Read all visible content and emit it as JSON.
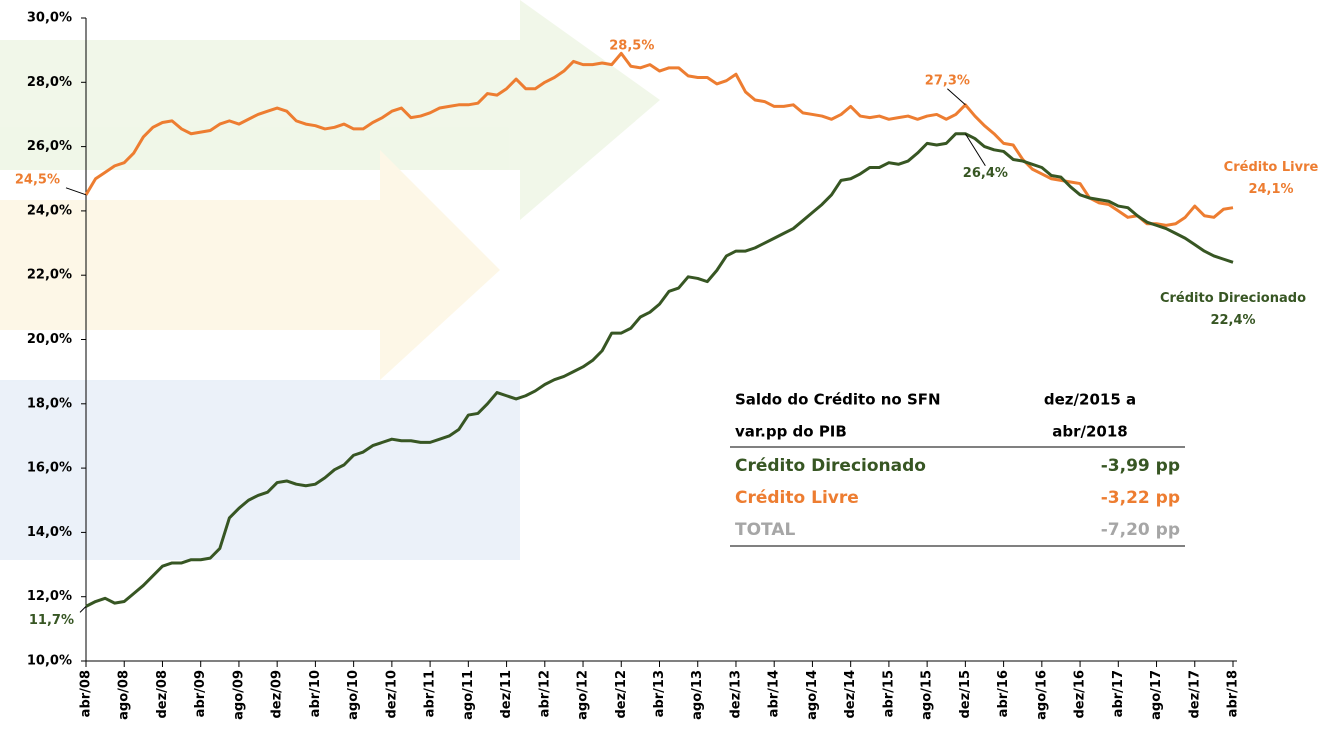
{
  "chart_data": {
    "type": "line",
    "categories": [
      "abr/08",
      null,
      null,
      null,
      "ago/08",
      null,
      null,
      null,
      "dez/08",
      null,
      null,
      null,
      "abr/09",
      null,
      null,
      null,
      "ago/09",
      null,
      null,
      null,
      "dez/09",
      null,
      null,
      null,
      "abr/10",
      null,
      null,
      null,
      "ago/10",
      null,
      null,
      null,
      "dez/10",
      null,
      null,
      null,
      "abr/11",
      null,
      null,
      null,
      "ago/11",
      null,
      null,
      null,
      "dez/11",
      null,
      null,
      null,
      "abr/12",
      null,
      null,
      null,
      "ago/12",
      null,
      null,
      null,
      "dez/12",
      null,
      null,
      null,
      "abr/13",
      null,
      null,
      null,
      "ago/13",
      null,
      null,
      null,
      "dez/13",
      null,
      null,
      null,
      "abr/14",
      null,
      null,
      null,
      "ago/14",
      null,
      null,
      null,
      "dez/14",
      null,
      null,
      null,
      "abr/15",
      null,
      null,
      null,
      "ago/15",
      null,
      null,
      null,
      "dez/15",
      null,
      null,
      null,
      "abr/16",
      null,
      null,
      null,
      "ago/16",
      null,
      null,
      null,
      "dez/16",
      null,
      null,
      null,
      "abr/17",
      null,
      null,
      null,
      "ago/17",
      null,
      null,
      null,
      "dez/17",
      null,
      null,
      null,
      "abr/18"
    ],
    "series": [
      {
        "name": "Crédito Livre",
        "color": "#ed7d31",
        "values": [
          24.5,
          25.0,
          25.2,
          25.4,
          25.5,
          25.8,
          26.3,
          26.6,
          26.75,
          26.8,
          26.55,
          26.4,
          26.45,
          26.5,
          26.7,
          26.8,
          26.7,
          26.85,
          27.0,
          27.1,
          27.2,
          27.1,
          26.8,
          26.7,
          26.65,
          26.55,
          26.6,
          26.7,
          26.55,
          26.55,
          26.75,
          26.9,
          27.1,
          27.2,
          26.9,
          26.95,
          27.05,
          27.2,
          27.25,
          27.3,
          27.3,
          27.35,
          27.65,
          27.6,
          27.8,
          28.1,
          27.8,
          27.8,
          28.0,
          28.15,
          28.35,
          28.65,
          28.55,
          28.55,
          28.6,
          28.55,
          28.9,
          28.5,
          28.45,
          28.55,
          28.35,
          28.45,
          28.45,
          28.2,
          28.15,
          28.15,
          27.95,
          28.05,
          28.25,
          27.7,
          27.45,
          27.4,
          27.25,
          27.25,
          27.3,
          27.05,
          27.0,
          26.95,
          26.85,
          27.0,
          27.25,
          26.95,
          26.9,
          26.95,
          26.85,
          26.9,
          26.95,
          26.85,
          26.95,
          27.0,
          26.85,
          27.0,
          27.3,
          26.95,
          26.65,
          26.4,
          26.1,
          26.05,
          25.6,
          25.3,
          25.15,
          25.0,
          24.95,
          24.9,
          24.85,
          24.4,
          24.25,
          24.2,
          24.0,
          23.8,
          23.85,
          23.6,
          23.6,
          23.55,
          23.6,
          23.8,
          24.15,
          23.85,
          23.8,
          24.05,
          24.1
        ],
        "value_labels": [
          "24,5%",
          null,
          null,
          null,
          null,
          null,
          null,
          null,
          null,
          null,
          null,
          null,
          null,
          null,
          null,
          null,
          null,
          null,
          null,
          null,
          null,
          null,
          null,
          null,
          null,
          null,
          null,
          null,
          null,
          null,
          null,
          null,
          null,
          null,
          null,
          null,
          null,
          null,
          null,
          null,
          null,
          null,
          null,
          null,
          null,
          null,
          null,
          null,
          null,
          null,
          null,
          null,
          null,
          null,
          null,
          null,
          null,
          "28,5%",
          null,
          null,
          null,
          null,
          null,
          null,
          null,
          null,
          null,
          null,
          null,
          null,
          null,
          null,
          null,
          null,
          null,
          null,
          null,
          null,
          null,
          null,
          null,
          null,
          null,
          null,
          null,
          null,
          null,
          null,
          null,
          null,
          null,
          null,
          "27,3%",
          null,
          null,
          null,
          null,
          null,
          null,
          null,
          null,
          null,
          null,
          null,
          null,
          null,
          null,
          null,
          null,
          null,
          null,
          null,
          null,
          null,
          null,
          null,
          null,
          null,
          null,
          null,
          "24,1%"
        ]
      },
      {
        "name": "Crédito Direcionado",
        "color": "#375623",
        "values": [
          11.7,
          11.85,
          11.95,
          11.8,
          11.85,
          12.1,
          12.35,
          12.65,
          12.95,
          13.05,
          13.05,
          13.15,
          13.15,
          13.2,
          13.5,
          14.45,
          14.75,
          15.0,
          15.15,
          15.25,
          15.55,
          15.6,
          15.5,
          15.45,
          15.5,
          15.7,
          15.95,
          16.1,
          16.4,
          16.5,
          16.7,
          16.8,
          16.9,
          16.85,
          16.85,
          16.8,
          16.8,
          16.9,
          17.0,
          17.2,
          17.65,
          17.7,
          18.0,
          18.35,
          18.25,
          18.15,
          18.25,
          18.4,
          18.6,
          18.75,
          18.85,
          19.0,
          19.15,
          19.35,
          19.65,
          20.2,
          20.2,
          20.35,
          20.7,
          20.85,
          21.1,
          21.5,
          21.6,
          21.95,
          21.9,
          21.8,
          22.15,
          22.6,
          22.75,
          22.75,
          22.85,
          23.0,
          23.15,
          23.3,
          23.45,
          23.7,
          23.95,
          24.2,
          24.5,
          24.95,
          25.0,
          25.15,
          25.35,
          25.35,
          25.5,
          25.45,
          25.55,
          25.8,
          26.1,
          26.05,
          26.1,
          26.4,
          26.4,
          26.25,
          26.0,
          25.9,
          25.85,
          25.6,
          25.55,
          25.45,
          25.35,
          25.1,
          25.05,
          24.75,
          24.5,
          24.4,
          24.35,
          24.3,
          24.15,
          24.1,
          23.85,
          23.65,
          23.55,
          23.45,
          23.3,
          23.15,
          22.95,
          22.75,
          22.6,
          22.5,
          22.4
        ],
        "value_labels": [
          "11,7%",
          null,
          null,
          null,
          null,
          null,
          null,
          null,
          null,
          null,
          null,
          null,
          null,
          null,
          null,
          null,
          null,
          null,
          null,
          null,
          null,
          null,
          null,
          null,
          null,
          null,
          null,
          null,
          null,
          null,
          null,
          null,
          null,
          null,
          null,
          null,
          null,
          null,
          null,
          null,
          null,
          null,
          null,
          null,
          null,
          null,
          null,
          null,
          null,
          null,
          null,
          null,
          null,
          null,
          null,
          null,
          null,
          null,
          null,
          null,
          null,
          null,
          null,
          null,
          null,
          null,
          null,
          null,
          null,
          null,
          null,
          null,
          null,
          null,
          null,
          null,
          null,
          null,
          null,
          null,
          null,
          null,
          null,
          null,
          null,
          null,
          null,
          null,
          null,
          null,
          null,
          null,
          "26,4%",
          null,
          null,
          null,
          null,
          null,
          null,
          null,
          null,
          null,
          null,
          null,
          null,
          null,
          null,
          null,
          null,
          null,
          null,
          null,
          null,
          null,
          null,
          null,
          null,
          null,
          null,
          null,
          "22,4%"
        ]
      }
    ],
    "ylim": [
      10,
      30
    ],
    "yticks": [
      {
        "value": 10,
        "label": "10,0%"
      },
      {
        "value": 12,
        "label": "12,0%"
      },
      {
        "value": 14,
        "label": "14,0%"
      },
      {
        "value": 16,
        "label": "16,0%"
      },
      {
        "value": 18,
        "label": "18,0%"
      },
      {
        "value": 20,
        "label": "20,0%"
      },
      {
        "value": 22,
        "label": "22,0%"
      },
      {
        "value": 24,
        "label": "24,0%"
      },
      {
        "value": 26,
        "label": "26,0%"
      },
      {
        "value": 28,
        "label": "28,0%"
      },
      {
        "value": 30,
        "label": "30,0%"
      }
    ],
    "grid": false,
    "table": {
      "header": [
        [
          "Saldo do Crédito no SFN",
          "dez/2015 a"
        ],
        [
          "var.pp do PIB",
          "abr/2018"
        ]
      ],
      "rows": [
        {
          "label": "Crédito Direcionado",
          "value": "-3,99 pp",
          "color": "#375623"
        },
        {
          "label": "Crédito Livre",
          "value": "-3,22 pp",
          "color": "#ed7d31"
        },
        {
          "label": "TOTAL",
          "value": "-7,20 pp",
          "color": "#a6a6a6"
        }
      ]
    }
  }
}
